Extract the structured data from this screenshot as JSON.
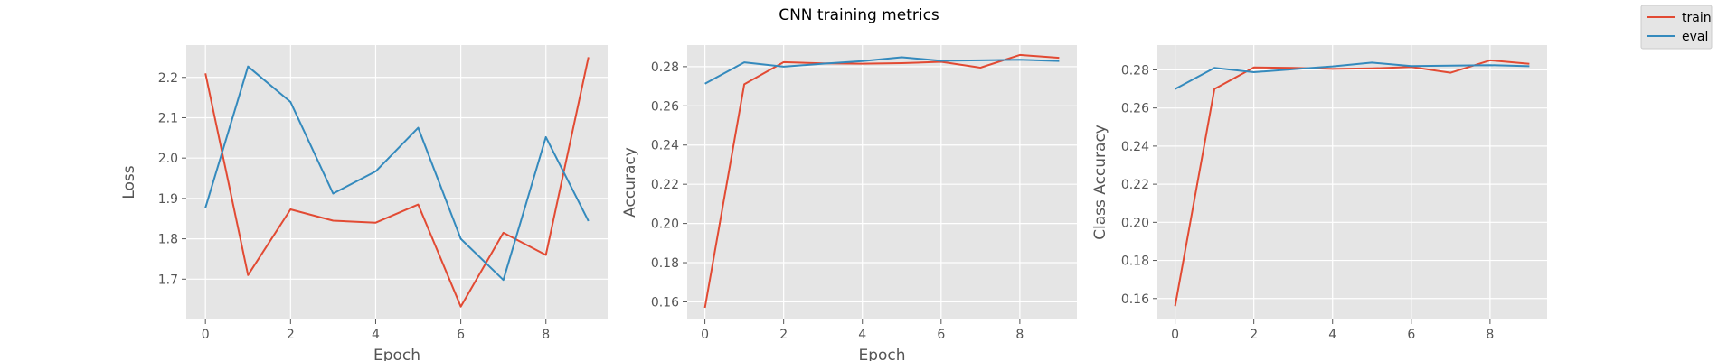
{
  "figure": {
    "title": "CNN training metrics",
    "legend": {
      "placement": "top-right",
      "entries": [
        {
          "name": "train",
          "color": "#E24A33"
        },
        {
          "name": "eval",
          "color": "#348ABD"
        }
      ]
    }
  },
  "chart_data": [
    {
      "type": "line",
      "title": "",
      "xlabel": "Epoch",
      "ylabel": "Loss",
      "xlim": [
        -0.45,
        9.45
      ],
      "ylim": [
        1.6,
        2.28
      ],
      "xticks": [
        0,
        2,
        4,
        6,
        8
      ],
      "yticks": [
        1.7,
        1.8,
        1.9,
        2.0,
        2.1,
        2.2
      ],
      "ytick_labels": [
        "1.7",
        "1.8",
        "1.9",
        "2.0",
        "2.1",
        "2.2"
      ],
      "grid": true,
      "x": [
        0,
        1,
        2,
        3,
        4,
        5,
        6,
        7,
        8,
        9
      ],
      "series": [
        {
          "name": "train",
          "color": "#E24A33",
          "values": [
            2.21,
            1.71,
            1.873,
            1.845,
            1.84,
            1.885,
            1.632,
            1.815,
            1.76,
            2.25
          ]
        },
        {
          "name": "eval",
          "color": "#348ABD",
          "values": [
            1.877,
            2.227,
            2.139,
            1.912,
            1.967,
            2.075,
            1.8,
            1.698,
            2.052,
            1.844
          ]
        }
      ]
    },
    {
      "type": "line",
      "title": "",
      "xlabel": "Epoch",
      "ylabel": "Accuracy",
      "xlim": [
        -0.45,
        9.45
      ],
      "ylim": [
        0.151,
        0.291
      ],
      "xticks": [
        0,
        2,
        4,
        6,
        8
      ],
      "yticks": [
        0.16,
        0.18,
        0.2,
        0.22,
        0.24,
        0.26,
        0.28
      ],
      "ytick_labels": [
        "0.16",
        "0.18",
        "0.20",
        "0.22",
        "0.24",
        "0.26",
        "0.28"
      ],
      "grid": true,
      "x": [
        0,
        1,
        2,
        3,
        4,
        5,
        6,
        7,
        8,
        9
      ],
      "series": [
        {
          "name": "train",
          "color": "#E24A33",
          "values": [
            0.157,
            0.271,
            0.2823,
            0.2817,
            0.2815,
            0.2818,
            0.2825,
            0.2795,
            0.286,
            0.2845
          ]
        },
        {
          "name": "eval",
          "color": "#348ABD",
          "values": [
            0.2713,
            0.2822,
            0.28,
            0.2815,
            0.2828,
            0.2848,
            0.283,
            0.2832,
            0.2835,
            0.2829
          ]
        }
      ]
    },
    {
      "type": "line",
      "title": "",
      "xlabel": "",
      "ylabel": "Class Accuracy",
      "xlim": [
        -0.45,
        9.45
      ],
      "ylim": [
        0.149,
        0.293
      ],
      "xticks": [
        0,
        2,
        4,
        6,
        8
      ],
      "yticks": [
        0.16,
        0.18,
        0.2,
        0.22,
        0.24,
        0.26,
        0.28
      ],
      "ytick_labels": [
        "0.16",
        "0.18",
        "0.20",
        "0.22",
        "0.24",
        "0.26",
        "0.28"
      ],
      "grid": true,
      "x": [
        0,
        1,
        2,
        3,
        4,
        5,
        6,
        7,
        8,
        9
      ],
      "series": [
        {
          "name": "train",
          "color": "#E24A33",
          "values": [
            0.156,
            0.27,
            0.2813,
            0.281,
            0.2805,
            0.2808,
            0.2815,
            0.2785,
            0.285,
            0.2832
          ]
        },
        {
          "name": "eval",
          "color": "#348ABD",
          "values": [
            0.27,
            0.281,
            0.2788,
            0.2803,
            0.2818,
            0.2838,
            0.282,
            0.2822,
            0.2825,
            0.2819
          ]
        }
      ]
    }
  ]
}
